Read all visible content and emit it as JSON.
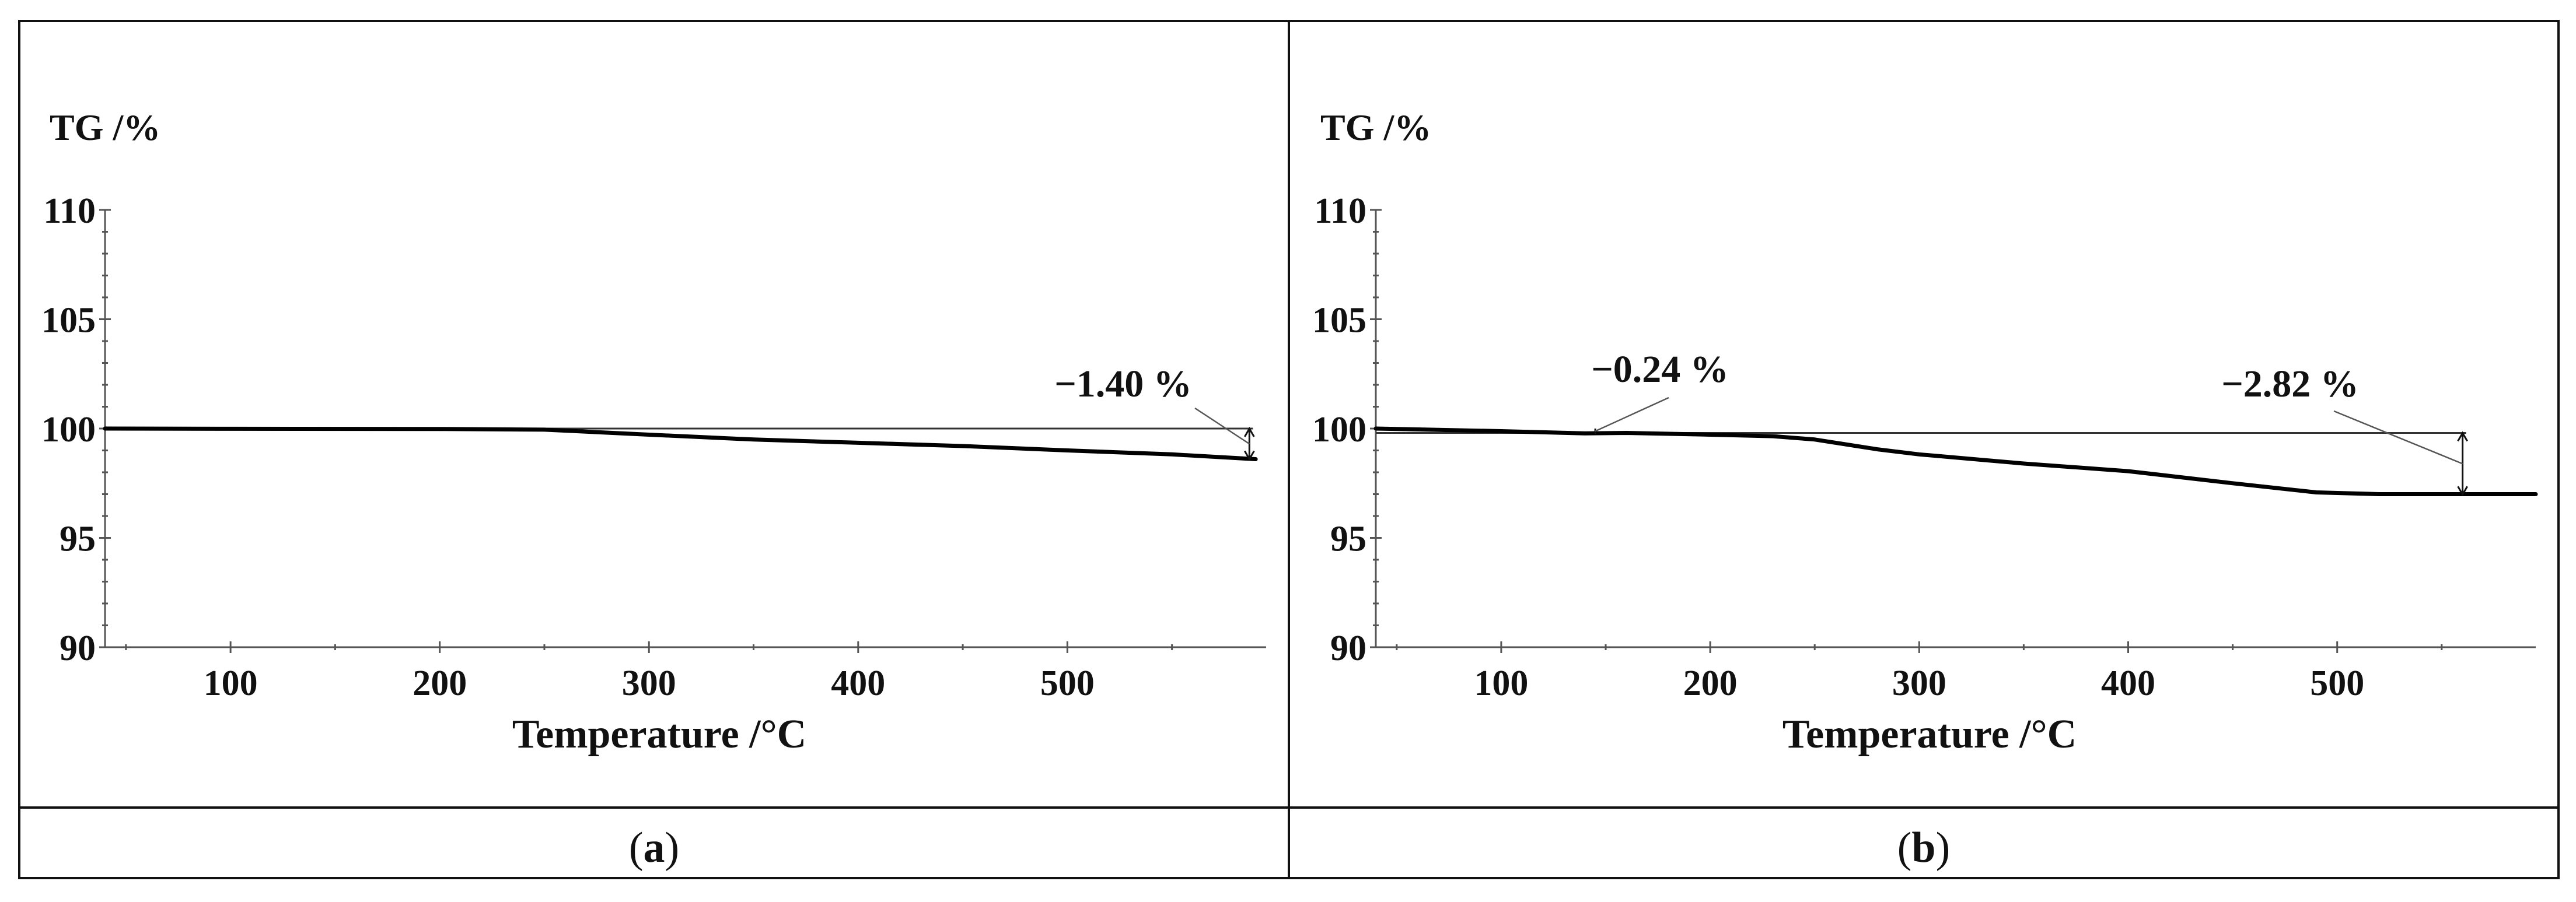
{
  "chart_data": [
    {
      "type": "line",
      "panel": "a",
      "ylabel": "TG /%",
      "xlabel": "Temperature /°C",
      "xlim": [
        40,
        595
      ],
      "ylim": [
        90,
        110
      ],
      "xticks": [
        100,
        200,
        300,
        400,
        500
      ],
      "yticks": [
        90,
        95,
        100,
        105,
        110
      ],
      "series": [
        {
          "x": [
            40,
            100,
            200,
            250,
            300,
            350,
            400,
            450,
            500,
            550,
            590
          ],
          "y": [
            100.0,
            99.99,
            99.98,
            99.95,
            99.72,
            99.5,
            99.35,
            99.2,
            99.0,
            98.82,
            98.6
          ]
        }
      ],
      "reference_y": 100.0,
      "annotations": [
        {
          "text": "−1.40 %",
          "x": 587,
          "y_from": 100.0,
          "y_to": 98.6
        }
      ]
    },
    {
      "type": "line",
      "panel": "b",
      "ylabel": "TG /%",
      "xlabel": "Temperature /°C",
      "xlim": [
        40,
        595
      ],
      "ylim": [
        90,
        110
      ],
      "xticks": [
        100,
        200,
        300,
        400,
        500
      ],
      "yticks": [
        90,
        95,
        100,
        105,
        110
      ],
      "series": [
        {
          "x": [
            40,
            100,
            140,
            160,
            200,
            230,
            250,
            280,
            300,
            350,
            400,
            450,
            490,
            520,
            560,
            595
          ],
          "y": [
            100.0,
            99.88,
            99.78,
            99.8,
            99.72,
            99.65,
            99.5,
            99.05,
            98.82,
            98.4,
            98.05,
            97.5,
            97.08,
            97.0,
            97.0,
            97.0
          ]
        }
      ],
      "reference_y": 99.8,
      "annotations": [
        {
          "text": "−0.24 %",
          "x": 145,
          "y_from": 100.0,
          "y_to": 99.76
        },
        {
          "text": "−2.82 %",
          "x": 560,
          "y_from": 99.8,
          "y_to": 96.98
        }
      ]
    }
  ],
  "captions": [
    {
      "open": "(",
      "letter": "a",
      "close": ")"
    },
    {
      "open": "(",
      "letter": "b",
      "close": ")"
    }
  ]
}
